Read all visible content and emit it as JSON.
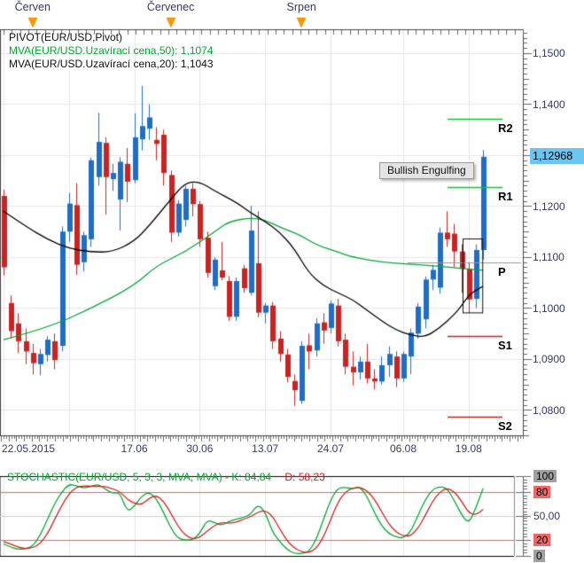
{
  "months": [
    {
      "label": "Červen",
      "i": 4
    },
    {
      "label": "Červenec",
      "i": 23
    },
    {
      "label": "Srpen",
      "i": 41
    }
  ],
  "legend": {
    "line1": "PIVOT(EUR/USD,Pivot)",
    "line2": "MVA(EUR/USD.Uzavírací cena,50): 1,1074",
    "line3": "MVA(EUR/USD.Uzavírací cena,20): 1,1043"
  },
  "tooltip": {
    "text": "Bullish Engulfing"
  },
  "price_tag": {
    "text": "1,12968",
    "value": 1.12968
  },
  "y_axis": {
    "labels": [
      {
        "text": "1,1500",
        "value": 1.15
      },
      {
        "text": "1,1400",
        "value": 1.14
      },
      {
        "text": "1,1200",
        "value": 1.12
      },
      {
        "text": "1,1100",
        "value": 1.11
      },
      {
        "text": "1,1000",
        "value": 1.1
      },
      {
        "text": "1,0900",
        "value": 1.09
      },
      {
        "text": "1,0800",
        "value": 1.08
      }
    ]
  },
  "x_axis": {
    "labels": [
      {
        "text": "22.05.2015",
        "i": 0,
        "align": "left"
      },
      {
        "text": "17.06",
        "i": 18
      },
      {
        "text": "30.06",
        "i": 27
      },
      {
        "text": "13.07",
        "i": 36
      },
      {
        "text": "24.07",
        "i": 45
      },
      {
        "text": "06.08",
        "i": 55
      },
      {
        "text": "19.08",
        "i": 64
      }
    ]
  },
  "pivot_labels": [
    {
      "text": "R2",
      "value": 1.1371
    },
    {
      "text": "R1",
      "value": 1.1237
    },
    {
      "text": "P",
      "value": 1.109
    },
    {
      "text": "S1",
      "value": 1.0945
    },
    {
      "text": "S2",
      "value": 1.0787
    }
  ],
  "stoch": {
    "legend_green": "STOCHASTIC(EUR/USD, 5, 3, 3, MVA, MVA) -  K: 84,84",
    "legend_red": "D: 58,23",
    "axis_labels": [
      {
        "text": "100",
        "value": 100,
        "style": "gray"
      },
      {
        "text": "80",
        "value": 80,
        "style": "red"
      },
      {
        "text": "50,00",
        "value": 50,
        "style": "plain"
      },
      {
        "text": "20",
        "value": 20,
        "style": "red"
      },
      {
        "text": "0",
        "value": 0,
        "style": "gray"
      }
    ]
  },
  "palette": {
    "up": "#1e6ec8",
    "down": "#cc2222",
    "ma50": "#00a832",
    "ma20": "#000000",
    "grid": "#e6e6ea",
    "frame": "#444444",
    "axis_text": "#373768",
    "pivot_r": "#00cc22",
    "pivot_s": "#c22222",
    "pivot_p": "#999999",
    "tag_bg": "#6cc5f1",
    "month_arrow": "#ff9900",
    "k_line": "#00a832",
    "d_line": "#cc2222",
    "level_red": "#e86060",
    "level_mid": "#cccccc",
    "badge_gray": "#a0a0a0",
    "badge_red": "#f26666",
    "tooltip_bg": "#e4e4e4"
  },
  "chart_data": [
    {
      "type": "candlestick",
      "symbol": "EUR/USD",
      "ylim": [
        1.0749,
        1.1547
      ],
      "hgrid_step": 0.01,
      "grid_i": [
        0,
        9,
        18,
        27,
        36,
        45,
        55,
        64
      ],
      "candles": [
        [
          1.122,
          1.1232,
          1.1064,
          1.108
        ],
        [
          1.101,
          1.1025,
          1.094,
          1.0955
        ],
        [
          1.097,
          1.099,
          1.0912,
          1.0935
        ],
        [
          1.0935,
          1.096,
          1.089,
          1.0915
        ],
        [
          1.0912,
          1.093,
          1.087,
          1.0892
        ],
        [
          1.089,
          1.092,
          1.0868,
          1.091
        ],
        [
          1.0908,
          1.0945,
          1.0895,
          1.0938
        ],
        [
          1.0935,
          1.095,
          1.088,
          1.0898
        ],
        [
          1.0926,
          1.116,
          1.0915,
          1.115
        ],
        [
          1.115,
          1.1226,
          1.113,
          1.1205
        ],
        [
          1.1202,
          1.1245,
          1.1065,
          1.1085
        ],
        [
          1.109,
          1.115,
          1.1072,
          1.1143
        ],
        [
          1.1135,
          1.1295,
          1.112,
          1.129
        ],
        [
          1.1257,
          1.1383,
          1.124,
          1.1326
        ],
        [
          1.1324,
          1.1335,
          1.1183,
          1.1257
        ],
        [
          1.1253,
          1.1283,
          1.123,
          1.1265
        ],
        [
          1.1213,
          1.1296,
          1.1152,
          1.1287
        ],
        [
          1.1283,
          1.1314,
          1.1208,
          1.1248
        ],
        [
          1.1251,
          1.1382,
          1.1245,
          1.1335
        ],
        [
          1.1331,
          1.1436,
          1.1309,
          1.1357
        ],
        [
          1.1352,
          1.14,
          1.133,
          1.1374
        ],
        [
          1.133,
          1.1355,
          1.129,
          1.1322
        ],
        [
          1.134,
          1.135,
          1.124,
          1.1265
        ],
        [
          1.1261,
          1.127,
          1.113,
          1.1148
        ],
        [
          1.1148,
          1.1212,
          1.114,
          1.1205
        ],
        [
          1.1173,
          1.124,
          1.116,
          1.1234
        ],
        [
          1.1234,
          1.1245,
          1.118,
          1.1204
        ],
        [
          1.1204,
          1.121,
          1.112,
          1.1135
        ],
        [
          1.1138,
          1.115,
          1.106,
          1.1069
        ],
        [
          1.1043,
          1.11,
          1.1035,
          1.1095
        ],
        [
          1.1074,
          1.113,
          1.1055,
          1.106
        ],
        [
          1.1053,
          1.1063,
          1.0975,
          1.0983
        ],
        [
          1.0983,
          1.106,
          1.0975,
          1.1053
        ],
        [
          1.1078,
          1.1085,
          1.103,
          1.1039
        ],
        [
          1.103,
          1.1201,
          1.1025,
          1.1152
        ],
        [
          1.1088,
          1.119,
          1.0982,
          1.0991
        ],
        [
          1.0991,
          1.101,
          1.097,
          1.1005
        ],
        [
          1.1005,
          1.1012,
          1.092,
          1.0935
        ],
        [
          1.094,
          1.0955,
          1.0895,
          1.091
        ],
        [
          1.0909,
          1.092,
          1.0855,
          1.0865
        ],
        [
          1.0857,
          1.087,
          1.0808,
          1.0839
        ],
        [
          1.0818,
          1.0935,
          1.0812,
          1.0926
        ],
        [
          1.0927,
          1.095,
          1.088,
          1.0915
        ],
        [
          1.0917,
          1.098,
          1.0905,
          1.097
        ],
        [
          1.0972,
          1.099,
          1.093,
          1.0956
        ],
        [
          1.0961,
          1.1015,
          1.095,
          1.1009
        ],
        [
          1.1005,
          1.1018,
          1.0925,
          1.0935
        ],
        [
          1.0938,
          1.095,
          1.087,
          1.0885
        ],
        [
          1.0885,
          1.0915,
          1.0848,
          1.0874
        ],
        [
          1.0874,
          1.0905,
          1.086,
          1.0895
        ],
        [
          1.0895,
          1.093,
          1.0852,
          1.0862
        ],
        [
          1.0862,
          1.088,
          1.084,
          1.0856
        ],
        [
          1.0856,
          1.0905,
          1.085,
          1.0888
        ],
        [
          1.0888,
          1.0925,
          1.0865,
          1.091
        ],
        [
          1.0905,
          1.0915,
          1.0845,
          1.0862
        ],
        [
          1.0862,
          1.0915,
          1.0855,
          1.091
        ],
        [
          1.0905,
          1.096,
          1.087,
          1.0952
        ],
        [
          1.095,
          1.101,
          1.094,
          1.1003
        ],
        [
          1.0978,
          1.1062,
          1.096,
          1.1056
        ],
        [
          1.1056,
          1.1085,
          1.1035,
          1.1075
        ],
        [
          1.104,
          1.1158,
          1.1028,
          1.1148
        ],
        [
          1.1148,
          1.119,
          1.112,
          1.1135
        ],
        [
          1.1146,
          1.1165,
          1.108,
          1.1111
        ],
        [
          1.1111,
          1.1125,
          1.103,
          1.1077
        ],
        [
          1.1077,
          1.109,
          1.099,
          1.1017
        ],
        [
          1.1018,
          1.1125,
          1.1,
          1.1114
        ],
        [
          1.1114,
          1.131,
          1.1095,
          1.12968
        ]
      ],
      "mva50": {
        "period": 50,
        "last": 1.1074,
        "points": [
          [
            0,
            1.0938
          ],
          [
            6,
            1.0961
          ],
          [
            12,
            1.0999
          ],
          [
            18,
            1.1044
          ],
          [
            21,
            1.1083
          ],
          [
            25,
            1.111
          ],
          [
            29,
            1.1149
          ],
          [
            31,
            1.117
          ],
          [
            34,
            1.1177
          ],
          [
            36,
            1.1173
          ],
          [
            38,
            1.1159
          ],
          [
            41,
            1.1142
          ],
          [
            43,
            1.1124
          ],
          [
            46,
            1.111
          ],
          [
            48,
            1.11
          ],
          [
            52,
            1.109
          ],
          [
            56,
            1.1086
          ],
          [
            59,
            1.1083
          ],
          [
            63,
            1.1078
          ],
          [
            66,
            1.1074
          ]
        ]
      },
      "mva20": {
        "period": 20,
        "last": 1.1043,
        "points": [
          [
            0,
            1.119
          ],
          [
            3,
            1.1161
          ],
          [
            6,
            1.1135
          ],
          [
            9,
            1.1117
          ],
          [
            12,
            1.111
          ],
          [
            15,
            1.111
          ],
          [
            18,
            1.1131
          ],
          [
            20,
            1.1161
          ],
          [
            23,
            1.1213
          ],
          [
            25,
            1.1246
          ],
          [
            27,
            1.1248
          ],
          [
            29,
            1.123
          ],
          [
            32,
            1.1208
          ],
          [
            34,
            1.1187
          ],
          [
            36,
            1.117
          ],
          [
            38,
            1.1149
          ],
          [
            40,
            1.1117
          ],
          [
            42,
            1.1069
          ],
          [
            44,
            1.1044
          ],
          [
            46,
            1.103
          ],
          [
            48,
            1.1017
          ],
          [
            50,
            1.0996
          ],
          [
            52,
            1.0975
          ],
          [
            54,
            1.0957
          ],
          [
            56,
            1.0947
          ],
          [
            58,
            1.0943
          ],
          [
            60,
            1.0961
          ],
          [
            62,
            1.0987
          ],
          [
            63,
            1.1004
          ],
          [
            64,
            1.1025
          ],
          [
            65,
            1.1035
          ],
          [
            66,
            1.1043
          ]
        ]
      },
      "pivot_levels": [
        {
          "label": "R2",
          "value": 1.1371,
          "type": "r"
        },
        {
          "label": "R1",
          "value": 1.1237,
          "type": "r"
        },
        {
          "label": "P",
          "value": 1.109,
          "type": "p"
        },
        {
          "label": "S1",
          "value": 1.0945,
          "type": "s"
        },
        {
          "label": "S2",
          "value": 1.0787,
          "type": "s"
        }
      ],
      "pattern_box": {
        "i_from": 64,
        "i_to": 65,
        "top": 1.1137,
        "bottom": 1.0992
      },
      "last_price": 1.12968
    },
    {
      "type": "line",
      "name": "stochastic",
      "ylim": [
        0,
        100
      ],
      "levels": [
        {
          "value": 100,
          "color_key": "frame20"
        },
        {
          "value": 80,
          "color_key": "level_red"
        },
        {
          "value": 50,
          "color_key": "level_mid"
        },
        {
          "value": 20,
          "color_key": "level_red"
        },
        {
          "value": 0,
          "color_key": "frame20"
        }
      ],
      "series": [
        {
          "name": "K",
          "last": "84,84",
          "color_key": "k_line",
          "values": [
            15,
            11,
            8,
            9,
            12,
            25,
            45,
            65,
            80,
            90,
            88,
            85,
            87,
            90,
            84,
            78,
            80,
            55,
            62,
            75,
            80,
            72,
            55,
            35,
            22,
            20,
            20,
            28,
            45,
            42,
            38,
            43,
            46,
            48,
            52,
            65,
            55,
            30,
            18,
            8,
            3,
            3,
            5,
            20,
            45,
            70,
            85,
            86,
            84,
            87,
            75,
            55,
            38,
            28,
            24,
            22,
            30,
            50,
            70,
            83,
            87,
            85,
            70,
            52,
            40,
            60,
            84.84
          ]
        },
        {
          "name": "D",
          "last": "58,23",
          "color_key": "d_line",
          "values": [
            18,
            15,
            11,
            9,
            10,
            15,
            27,
            45,
            63,
            78,
            86,
            88,
            87,
            87,
            87,
            84,
            81,
            71,
            66,
            64,
            72,
            76,
            69,
            54,
            37,
            26,
            21,
            23,
            31,
            38,
            42,
            41,
            42,
            46,
            49,
            55,
            57,
            50,
            34,
            19,
            10,
            5,
            4,
            9,
            23,
            45,
            67,
            80,
            85,
            86,
            82,
            72,
            56,
            40,
            30,
            25,
            25,
            34,
            50,
            68,
            80,
            85,
            81,
            69,
            54,
            51,
            58.23
          ]
        }
      ]
    }
  ]
}
